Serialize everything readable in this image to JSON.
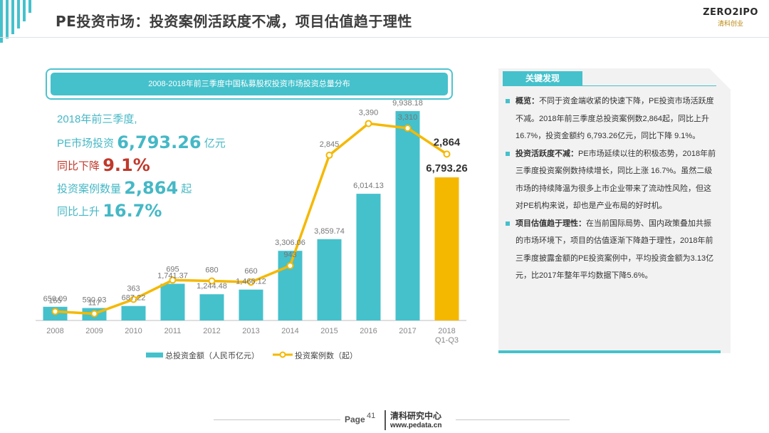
{
  "page": {
    "title": "PE投资市场：投资案例活跃度不减，项目估值趋于理性",
    "logo_text": "ZERO2IPO",
    "logo_sub": "清科创业",
    "page_label": "Page",
    "page_number": "41",
    "footer_org": "清科研究中心",
    "footer_url": "www.pedata.cn",
    "accent_color": "#45c1cc",
    "line_color": "#f5b800"
  },
  "stats": {
    "l1": "2018年前三季度,",
    "l2_prefix": "PE市场投资",
    "l2_value": "6,793.26",
    "l2_unit": "亿元",
    "l3_prefix": "同比下降",
    "l3_value": "9.1%",
    "l4_prefix": "投资案例数量",
    "l4_value": "2,864",
    "l4_unit": "起",
    "l5_prefix": "同比上升",
    "l5_value": "16.7%"
  },
  "chart_data": {
    "type": "bar+line",
    "title": "2008-2018年前三季度中国私募股权投资市场投资总量分布",
    "categories": [
      "2008",
      "2009",
      "2010",
      "2011",
      "2012",
      "2013",
      "2014",
      "2015",
      "2016",
      "2017",
      "2018 Q1-Q3"
    ],
    "category_labels": [
      [
        "2008"
      ],
      [
        "2009"
      ],
      [
        "2010"
      ],
      [
        "2011"
      ],
      [
        "2012"
      ],
      [
        "2013"
      ],
      [
        "2014"
      ],
      [
        "2015"
      ],
      [
        "2016"
      ],
      [
        "2017"
      ],
      [
        "2018",
        "Q1-Q3"
      ]
    ],
    "series": [
      {
        "name": "总投资金额（人民币亿元）",
        "type": "bar",
        "values": [
          650.09,
          590.93,
          687.22,
          1741.37,
          1244.48,
          1466.12,
          3306.06,
          3859.74,
          6014.13,
          9938.18,
          6793.26
        ],
        "labels": [
          "650.09",
          "590.93",
          "687.22",
          "1,741.37",
          "1,244.48",
          "1,466.12",
          "3,306.06",
          "3,859.74",
          "6,014.13",
          "9,938.18",
          "6,793.26"
        ]
      },
      {
        "name": "投资案例数（起）",
        "type": "line",
        "values": [
          155,
          117,
          363,
          695,
          680,
          660,
          943,
          2845,
          3390,
          3310,
          2864
        ],
        "labels": [
          "155",
          "117",
          "363",
          "695",
          "680",
          "660",
          "943",
          "2,845",
          "3,390",
          "3,310",
          "2,864"
        ]
      }
    ],
    "bar_color": "#45c1cc",
    "highlight_bar_color": "#f5b800",
    "line_color": "#f5b800",
    "bar_ylim": [
      0,
      12000
    ],
    "line_ylim": [
      0,
      3800
    ],
    "legend_position": "bottom"
  },
  "findings": {
    "title": "关键发现",
    "items": [
      {
        "label": "概览：",
        "text": "不同于资金端收紧的快速下降，PE投资市场活跃度不减。2018年前三季度总投资案例数2,864起，同比上升16.7%，投资金额约 6,793.26亿元，同比下降 9.1%。"
      },
      {
        "label": "投资活跃度不减：",
        "text": "PE市场延续以往的积极态势，2018年前三季度投资案例数持续增长，同比上涨 16.7%。虽然二级市场的持续降温为很多上市企业带来了流动性风险，但这对PE机构来说，却也是产业布局的好时机。"
      },
      {
        "label": "项目估值趋于理性：",
        "text": "在当前国际局势、国内政策叠加共振的市场环境下，项目的估值逐渐下降趋于理性，2018年前三季度披露金额的PE投资案例中，平均投资金额为3.13亿元，比2017年整年平均数据下降5.6%。"
      }
    ]
  }
}
